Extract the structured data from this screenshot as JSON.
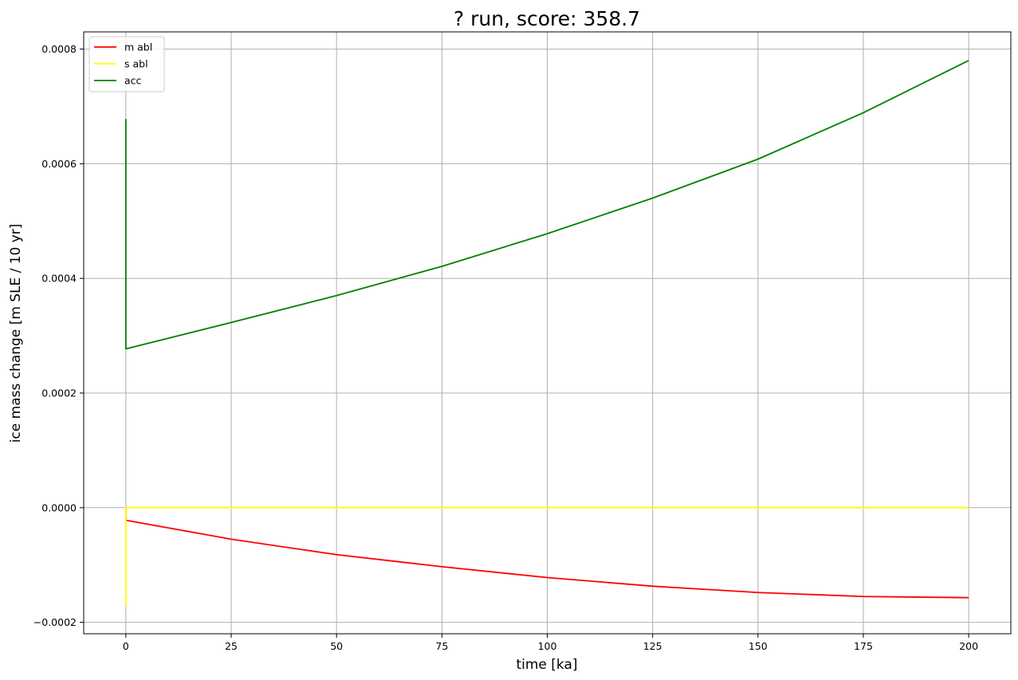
{
  "chart_data": {
    "type": "line",
    "title": "? run, score: 358.7",
    "xlabel": "time [ka]",
    "ylabel": "ice mass change [m SLE / 10 yr]",
    "xlim": [
      -10,
      210
    ],
    "ylim": [
      -0.00022,
      0.00083
    ],
    "xticks": [
      0,
      25,
      50,
      75,
      100,
      125,
      150,
      175,
      200
    ],
    "xtick_labels": [
      "0",
      "25",
      "50",
      "75",
      "100",
      "125",
      "150",
      "175",
      "200"
    ],
    "yticks": [
      -0.0002,
      0.0,
      0.0002,
      0.0004,
      0.0006,
      0.0008
    ],
    "ytick_labels": [
      "−0.0002",
      "0.0000",
      "0.0002",
      "0.0004",
      "0.0006",
      "0.0008"
    ],
    "grid": true,
    "legend_position": "upper-left",
    "series": [
      {
        "name": "m abl",
        "color": "#ff0000",
        "x": [
          0,
          0,
          25,
          50,
          75,
          100,
          125,
          150,
          175,
          200
        ],
        "y": [
          0.0,
          -2.2e-05,
          -5.5e-05,
          -8.2e-05,
          -0.000103,
          -0.000122,
          -0.000137,
          -0.000148,
          -0.000155,
          -0.000157
        ]
      },
      {
        "name": "s abl",
        "color": "#ffff00",
        "x": [
          0,
          0,
          0.5,
          200
        ],
        "y": [
          -0.000172,
          0.0,
          0.0,
          0.0
        ]
      },
      {
        "name": "acc",
        "color": "#008000",
        "x": [
          0,
          0,
          25,
          50,
          75,
          100,
          125,
          150,
          175,
          200
        ],
        "y": [
          0.000678,
          0.000277,
          0.000323,
          0.00037,
          0.000421,
          0.000478,
          0.00054,
          0.000608,
          0.000689,
          0.00078
        ]
      }
    ]
  }
}
